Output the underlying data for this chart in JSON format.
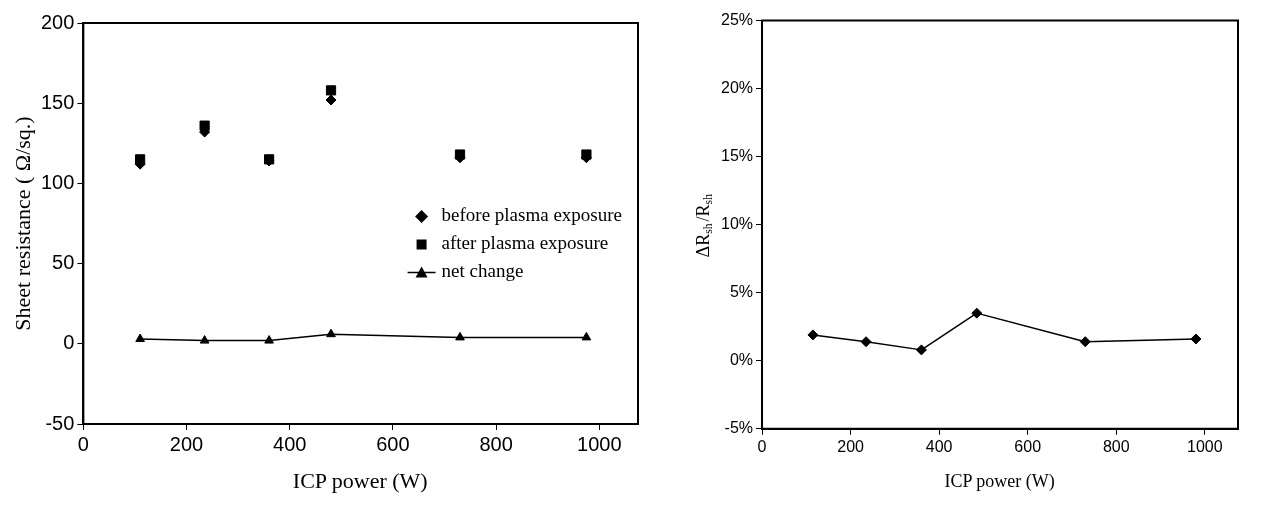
{
  "chart_data": [
    {
      "type": "scatter",
      "xlabel": "ICP power (W)",
      "ylabel": "Sheet resistance ( Ω/sq.)",
      "x": [
        110,
        235,
        360,
        480,
        730,
        975
      ],
      "xlim": [
        0,
        1075
      ],
      "xticks": [
        0,
        200,
        400,
        600,
        800,
        1000
      ],
      "ylim": [
        -50,
        200
      ],
      "yticks": [
        -50,
        0,
        50,
        100,
        150,
        200
      ],
      "grid": false,
      "legend": "center right",
      "series": [
        {
          "name": "before plasma exposure",
          "type": "scatter",
          "marker": "diamond",
          "color": "#000000",
          "values": [
            112,
            132,
            114,
            152,
            116,
            116
          ]
        },
        {
          "name": "after plasma exposure",
          "type": "scatter",
          "marker": "square",
          "color": "#000000",
          "values": [
            115,
            136,
            115,
            158,
            118,
            118
          ]
        },
        {
          "name": "net change",
          "type": "line",
          "marker": "triangle",
          "line_style": "solid",
          "color": "#000000",
          "values": [
            3,
            2,
            2,
            6,
            4,
            4
          ]
        }
      ]
    },
    {
      "type": "line",
      "xlabel": "ICP power (W)",
      "ylabel": "ΔR$_{sh}$/R$_{sh}$",
      "x": [
        115,
        235,
        360,
        485,
        730,
        980
      ],
      "xlim": [
        0,
        1075
      ],
      "xticks": [
        0,
        200,
        400,
        600,
        800,
        1000
      ],
      "ylim": [
        -5,
        25
      ],
      "yticks": [
        {
          "value": -5,
          "label": "-5%"
        },
        {
          "value": 0,
          "label": "0%"
        },
        {
          "value": 5,
          "label": "5%"
        },
        {
          "value": 10,
          "label": "10%"
        },
        {
          "value": 15,
          "label": "15%"
        },
        {
          "value": 20,
          "label": "20%"
        },
        {
          "value": 25,
          "label": "25%"
        }
      ],
      "grid": false,
      "marker": "diamond",
      "line_style": "solid",
      "series": [
        {
          "color": "#000000",
          "values": [
            1.9,
            1.4,
            0.8,
            3.5,
            1.4,
            1.6
          ]
        }
      ]
    }
  ]
}
